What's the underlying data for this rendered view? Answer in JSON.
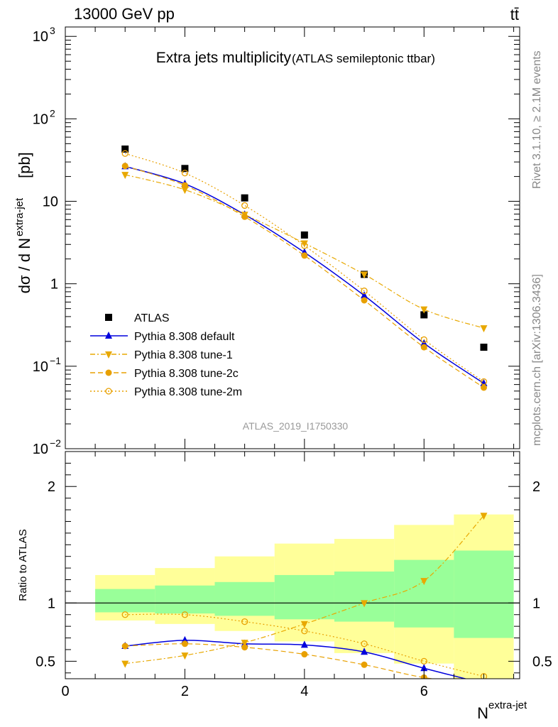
{
  "header": {
    "left": "13000 GeV pp",
    "right": "tt̄",
    "side_top": "Rivet 3.1.10, ≥ 2.1M events",
    "side_bottom": "mcplots.cern.ch [arXiv:1306.3436]",
    "watermark": "ATLAS_2019_I1750330"
  },
  "chart_data": [
    {
      "type": "scatter",
      "title": "Extra jets multiplicity",
      "subtitle": "(ATLAS semileptonic ttbar)",
      "ylabel_main": "dσ / d N",
      "ylabel_sup": "extra-jet",
      "ylabel_unit": "[pb]",
      "yscale": "log",
      "xlim": [
        0,
        7.6
      ],
      "ylim": [
        0.01,
        1300
      ],
      "yticks": [
        {
          "v": 0.01,
          "base": "10",
          "exp": "−2"
        },
        {
          "v": 0.1,
          "base": "10",
          "exp": "−1"
        },
        {
          "v": 1,
          "base": "1",
          "exp": ""
        },
        {
          "v": 10,
          "base": "10",
          "exp": ""
        },
        {
          "v": 100,
          "base": "10",
          "exp": "2"
        },
        {
          "v": 1000,
          "base": "10",
          "exp": "3"
        }
      ],
      "legend_position": "lower-left",
      "series": [
        {
          "name": "ATLAS",
          "color": "#000000",
          "marker": "square",
          "line": "none",
          "x": [
            1,
            2,
            3,
            4,
            5,
            6,
            7
          ],
          "y": [
            43,
            25,
            11,
            3.9,
            1.3,
            0.42,
            0.17
          ]
        },
        {
          "name": "Pythia 8.308 default",
          "color": "#0000dd",
          "marker": "triangle-up",
          "line": "solid",
          "x": [
            1,
            2,
            3,
            4,
            5,
            6,
            7
          ],
          "y": [
            26.5,
            16.3,
            6.9,
            2.4,
            0.72,
            0.19,
            0.062
          ]
        },
        {
          "name": "Pythia 8.308 tune-1",
          "color": "#e8a800",
          "marker": "triangle-down",
          "line": "dashdot",
          "x": [
            1,
            2,
            3,
            4,
            5,
            6,
            7
          ],
          "y": [
            21,
            13.8,
            6.9,
            3.1,
            1.3,
            0.49,
            0.29
          ]
        },
        {
          "name": "Pythia 8.308 tune-2c",
          "color": "#e8a000",
          "marker": "circle",
          "line": "dashed",
          "x": [
            1,
            2,
            3,
            4,
            5,
            6,
            7
          ],
          "y": [
            26.8,
            15.6,
            6.5,
            2.2,
            0.63,
            0.17,
            0.055
          ]
        },
        {
          "name": "Pythia 8.308 tune-2m",
          "color": "#e8a000",
          "marker": "circle-open",
          "line": "dotted",
          "x": [
            1,
            2,
            3,
            4,
            5,
            6,
            7
          ],
          "y": [
            38,
            22,
            8.9,
            2.9,
            0.82,
            0.21,
            0.065
          ]
        }
      ]
    },
    {
      "type": "scatter",
      "ylabel": "Ratio to ATLAS",
      "xlabel": "N",
      "xlabel_sup": "extra-jet",
      "xlim": [
        0,
        7.6
      ],
      "ylim": [
        0.35,
        2.3
      ],
      "xticks": [
        0,
        2,
        4,
        6
      ],
      "yticks": [
        0.5,
        1,
        2
      ],
      "reference_line": 1,
      "uncertainty_bands": {
        "bin_edges": [
          0.5,
          1.5,
          2.5,
          3.5,
          4.5,
          5.5,
          6.5,
          7.5
        ],
        "stat_color": "#99ff99",
        "total_color": "#ffff99",
        "stat": [
          [
            0.92,
            1.12
          ],
          [
            0.91,
            1.15
          ],
          [
            0.89,
            1.18
          ],
          [
            0.86,
            1.24
          ],
          [
            0.84,
            1.27
          ],
          [
            0.79,
            1.37
          ],
          [
            0.7,
            1.45
          ]
        ],
        "total": [
          [
            0.85,
            1.24
          ],
          [
            0.82,
            1.3
          ],
          [
            0.76,
            1.4
          ],
          [
            0.67,
            1.51
          ],
          [
            0.57,
            1.55
          ],
          [
            0.48,
            1.67
          ],
          [
            0.35,
            1.76
          ]
        ]
      },
      "series": [
        {
          "name": "Pythia 8.308 default",
          "x": [
            1,
            2,
            3,
            4,
            5,
            6,
            7
          ],
          "y": [
            0.63,
            0.68,
            0.65,
            0.64,
            0.58,
            0.44,
            0.31
          ]
        },
        {
          "name": "Pythia 8.308 tune-1",
          "x": [
            1,
            2,
            3,
            4,
            5,
            6,
            7
          ],
          "y": [
            0.48,
            0.55,
            0.66,
            0.82,
            1.0,
            1.19,
            1.75
          ]
        },
        {
          "name": "Pythia 8.308 tune-2c",
          "x": [
            1,
            2,
            3,
            4,
            5,
            6,
            7
          ],
          "y": [
            0.63,
            0.65,
            0.62,
            0.56,
            0.47,
            0.36,
            0.3
          ]
        },
        {
          "name": "Pythia 8.308 tune-2m",
          "x": [
            1,
            2,
            3,
            4,
            5,
            6,
            7
          ],
          "y": [
            0.9,
            0.9,
            0.84,
            0.76,
            0.65,
            0.5,
            0.37
          ]
        }
      ]
    }
  ]
}
